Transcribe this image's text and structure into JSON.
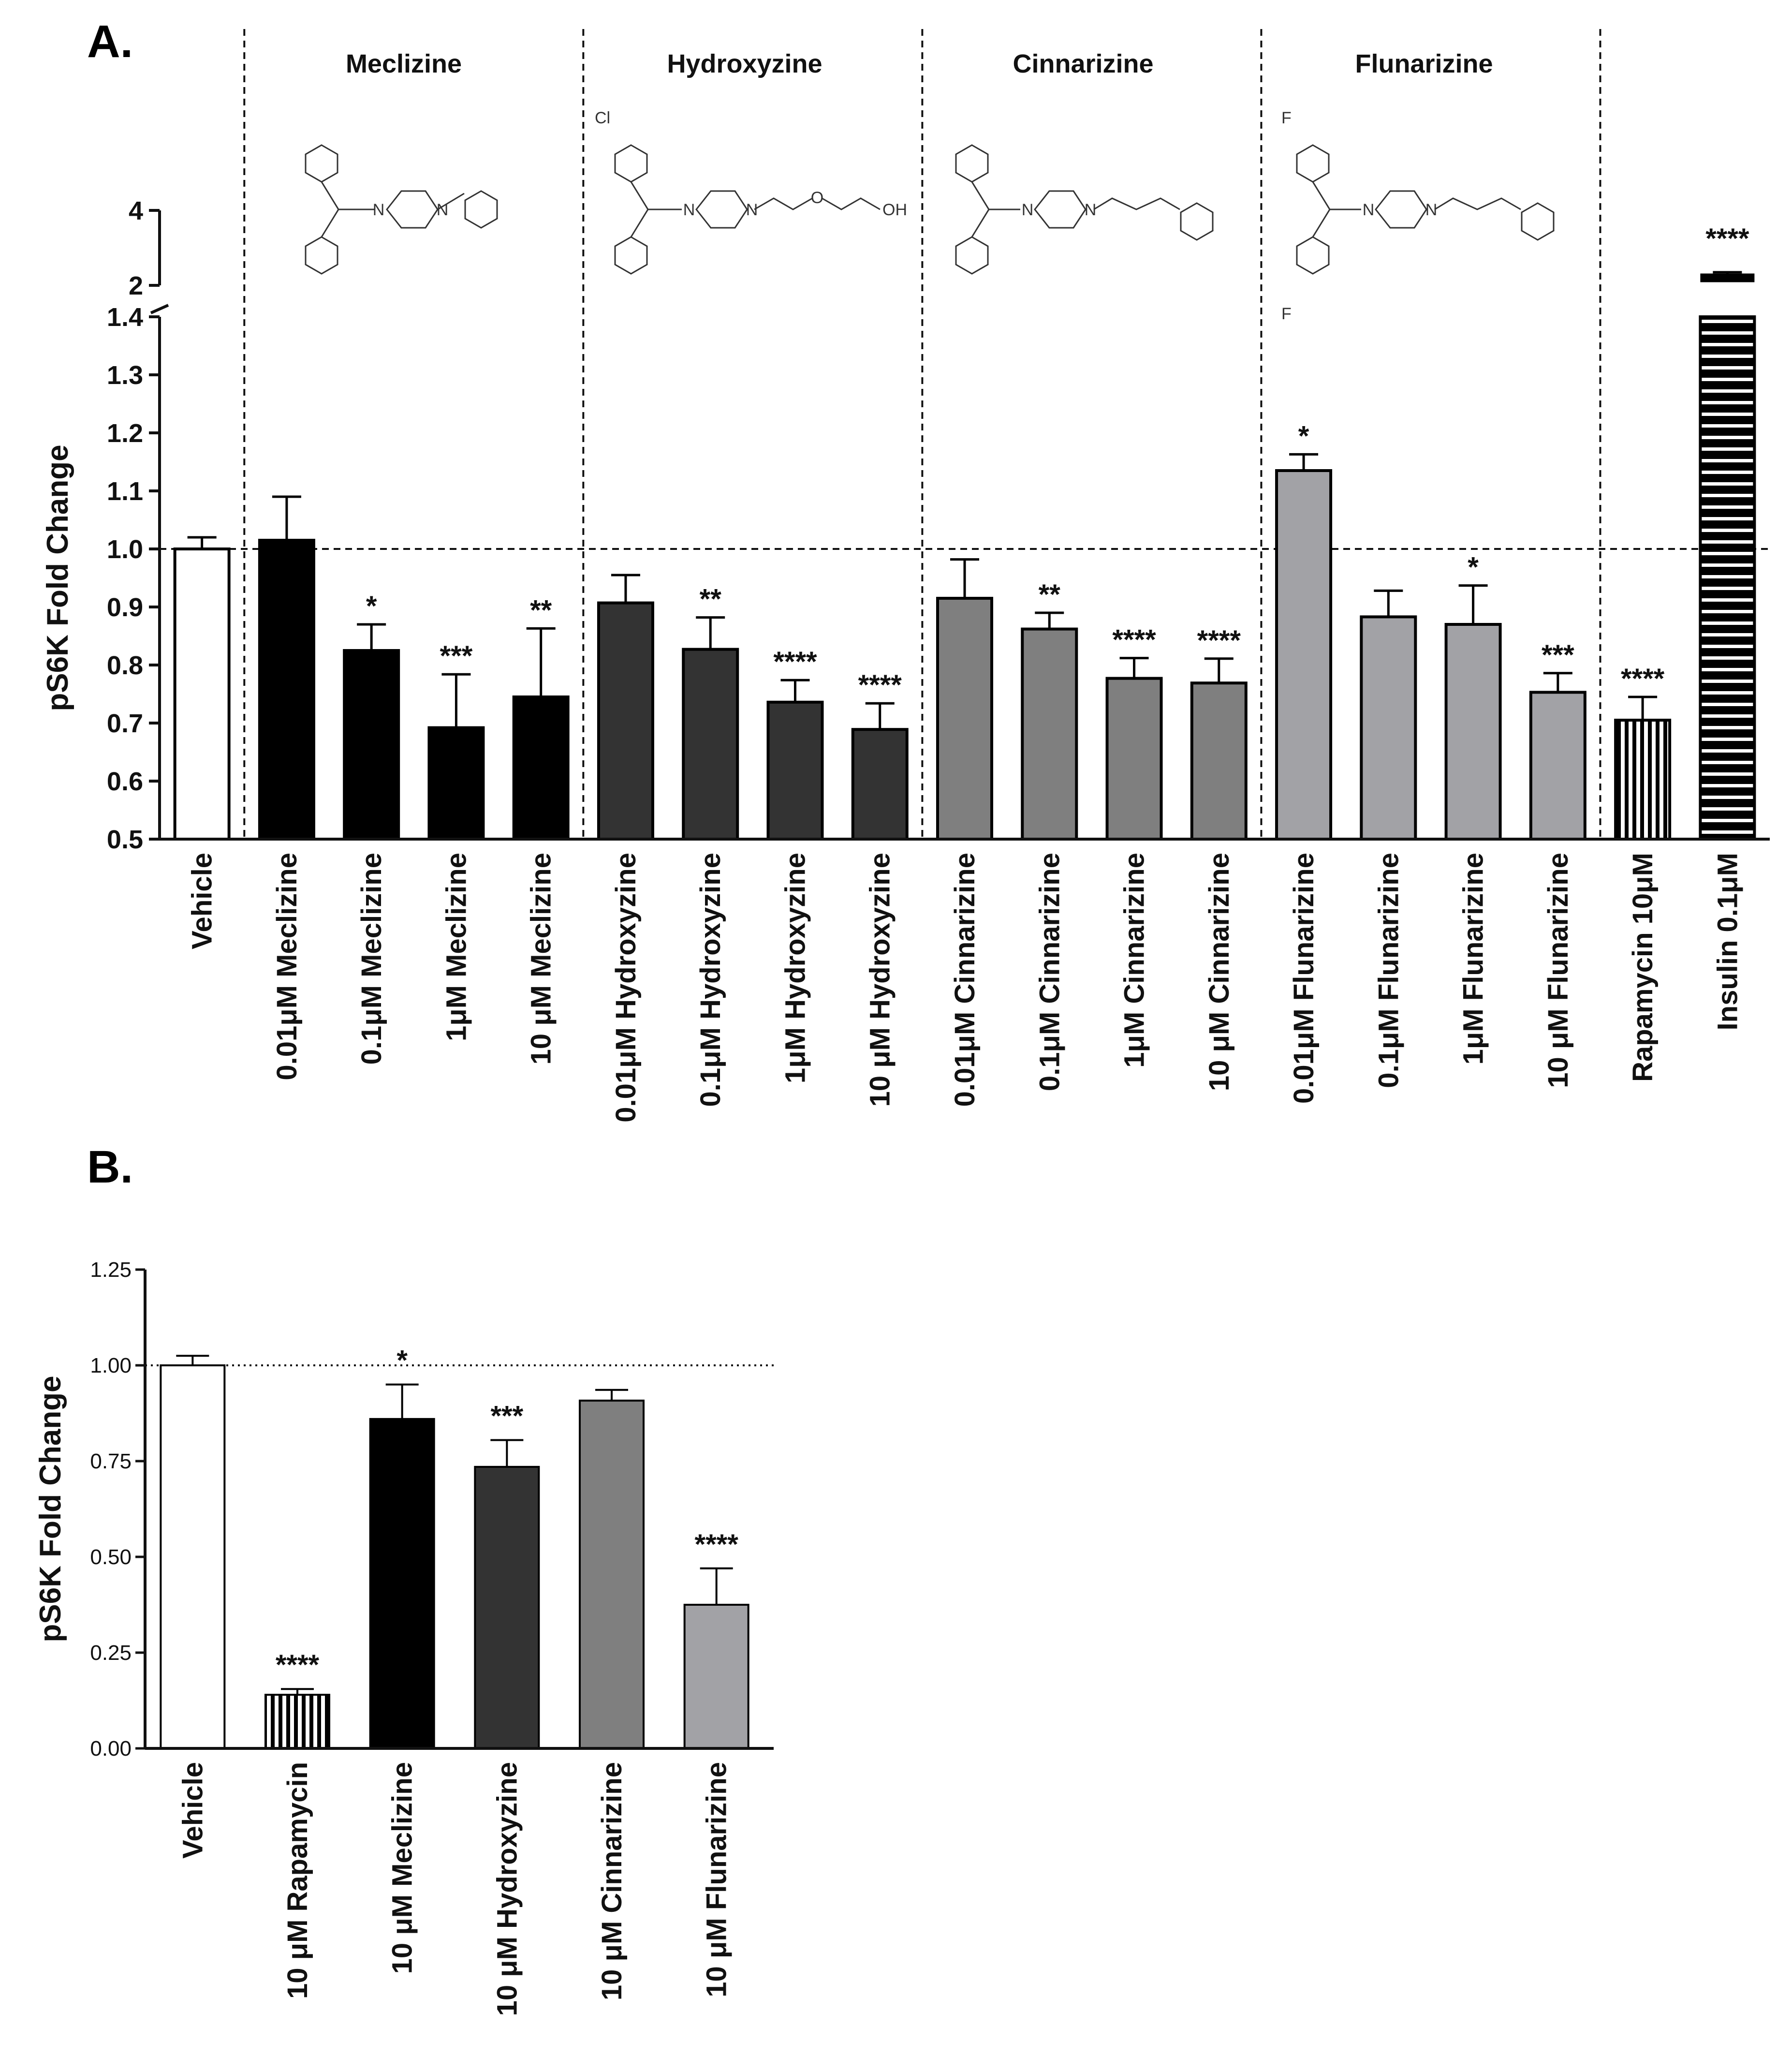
{
  "colors": {
    "vehicle": "#ffffff",
    "meclizine": "#000000",
    "hydroxyzine": "#333333",
    "cinnarizine": "#7f7f7f",
    "flunarizine": "#a2a2a6",
    "axis": "#111111"
  },
  "panels": {
    "a_label": "A.",
    "b_label": "B."
  },
  "groups": [
    {
      "name": "Meclizine"
    },
    {
      "name": "Hydroxyzine"
    },
    {
      "name": "Cinnarizine"
    },
    {
      "name": "Flunarizine"
    }
  ],
  "molecule_labels": {
    "n": "N",
    "cl": "Cl",
    "o": "O",
    "oh": "OH",
    "f": "F"
  },
  "chart_data": [
    {
      "type": "bar",
      "title": "",
      "ylabel": "pS6K Fold Change",
      "xlabel": "",
      "ylim_lower": [
        0.5,
        1.4
      ],
      "ylim_upper": [
        2,
        4
      ],
      "axis_break": true,
      "yticks_lower": [
        "0.5",
        "0.6",
        "0.7",
        "0.8",
        "0.9",
        "1.0",
        "1.1",
        "1.2",
        "1.3",
        "1.4"
      ],
      "yticks_upper": [
        "2",
        "4"
      ],
      "reference_line": 1.0,
      "bars": [
        {
          "label": "Vehicle",
          "value": 1.0,
          "error": 0.02,
          "sig": "",
          "fill": "vehicle"
        },
        {
          "label": "0.01μM Meclizine",
          "value": 1.015,
          "error": 0.075,
          "sig": "",
          "fill": "meclizine"
        },
        {
          "label": "0.1μM  Meclizine",
          "value": 0.825,
          "error": 0.045,
          "sig": "*",
          "fill": "meclizine"
        },
        {
          "label": "1μM Meclizine",
          "value": 0.692,
          "error": 0.092,
          "sig": "***",
          "fill": "meclizine"
        },
        {
          "label": "10 μM Meclizine",
          "value": 0.745,
          "error": 0.118,
          "sig": "**",
          "fill": "meclizine"
        },
        {
          "label": "0.01μM Hydroxyzine",
          "value": 0.907,
          "error": 0.048,
          "sig": "",
          "fill": "hydroxyzine"
        },
        {
          "label": "0.1μM Hydroxyzine",
          "value": 0.827,
          "error": 0.055,
          "sig": "**",
          "fill": "hydroxyzine"
        },
        {
          "label": "1μM Hydroxyzine",
          "value": 0.736,
          "error": 0.038,
          "sig": "****",
          "fill": "hydroxyzine"
        },
        {
          "label": "10 μM Hydroxyzine",
          "value": 0.689,
          "error": 0.045,
          "sig": "****",
          "fill": "hydroxyzine"
        },
        {
          "label": "0.01μM Cinnarizine",
          "value": 0.915,
          "error": 0.067,
          "sig": "",
          "fill": "cinnarizine"
        },
        {
          "label": "0.1μM Cinnarizine",
          "value": 0.862,
          "error": 0.028,
          "sig": "**",
          "fill": "cinnarizine"
        },
        {
          "label": "1μM Cinnarizine",
          "value": 0.777,
          "error": 0.035,
          "sig": "****",
          "fill": "cinnarizine"
        },
        {
          "label": "10 μM Cinnarizine",
          "value": 0.769,
          "error": 0.042,
          "sig": "****",
          "fill": "cinnarizine"
        },
        {
          "label": "0.01μM Flunarizine",
          "value": 1.135,
          "error": 0.028,
          "sig": "*",
          "fill": "flunarizine"
        },
        {
          "label": "0.1μM Flunarizine",
          "value": 0.883,
          "error": 0.045,
          "sig": "",
          "fill": "flunarizine"
        },
        {
          "label": "1μM Flunarizine",
          "value": 0.87,
          "error": 0.067,
          "sig": "*",
          "fill": "flunarizine"
        },
        {
          "label": "10 μM Flunarizine",
          "value": 0.753,
          "error": 0.033,
          "sig": "***",
          "fill": "flunarizine"
        },
        {
          "label": "Rapamycin 10μM",
          "value": 0.705,
          "error": 0.04,
          "sig": "****",
          "fill": "vstripe"
        },
        {
          "label": "Insulin 0.1μM",
          "value": 2.2,
          "error": 0.15,
          "sig": "****",
          "fill": "hstripe"
        }
      ]
    },
    {
      "type": "bar",
      "title": "",
      "ylabel": "pS6K Fold Change",
      "xlabel": "",
      "ylim": [
        0.0,
        1.25
      ],
      "yticks": [
        "0.00",
        "0.25",
        "0.50",
        "0.75",
        "1.00",
        "1.25"
      ],
      "reference_line": 1.0,
      "bars": [
        {
          "label": "Vehicle",
          "value": 1.0,
          "error": 0.025,
          "sig": "",
          "fill": "vehicle"
        },
        {
          "label": "10 μM Rapamycin",
          "value": 0.14,
          "error": 0.015,
          "sig": "****",
          "fill": "vstripe"
        },
        {
          "label": "10 μM Meclizine",
          "value": 0.86,
          "error": 0.09,
          "sig": "*",
          "fill": "meclizine"
        },
        {
          "label": "10 μM Hydroxyzine",
          "value": 0.735,
          "error": 0.07,
          "sig": "***",
          "fill": "hydroxyzine"
        },
        {
          "label": "10 μM Cinnarizine",
          "value": 0.908,
          "error": 0.028,
          "sig": "",
          "fill": "cinnarizine"
        },
        {
          "label": "10 μM Flunarizine",
          "value": 0.375,
          "error": 0.095,
          "sig": "****",
          "fill": "flunarizine"
        }
      ]
    }
  ]
}
